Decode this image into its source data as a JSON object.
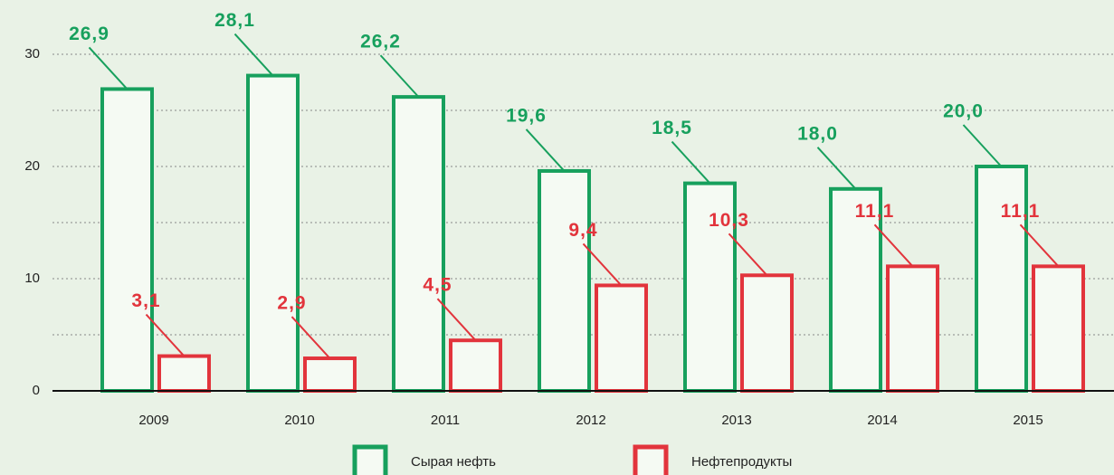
{
  "chart_data": {
    "type": "bar",
    "categories": [
      "2009",
      "2010",
      "2011",
      "2012",
      "2013",
      "2014",
      "2015"
    ],
    "series": [
      {
        "name": "Сырая нефть",
        "color": "#17a05d",
        "values": [
          26.9,
          28.1,
          26.2,
          19.6,
          18.5,
          18.0,
          20.0
        ],
        "value_labels": [
          "26,9",
          "28,1",
          "26,2",
          "19,6",
          "18,5",
          "18,0",
          "20,0"
        ]
      },
      {
        "name": "Нефтепродукты",
        "color": "#e2343c",
        "values": [
          3.1,
          2.9,
          4.5,
          9.4,
          10.3,
          11.1,
          11.1
        ],
        "value_labels": [
          "3,1",
          "2,9",
          "4,5",
          "9,4",
          "10,3",
          "11,1",
          "11,1"
        ]
      }
    ],
    "ylim": [
      0,
      30
    ],
    "yticks": [
      0,
      10,
      20,
      30
    ],
    "minor_yticks": [
      5,
      15,
      25
    ],
    "grid": true
  }
}
